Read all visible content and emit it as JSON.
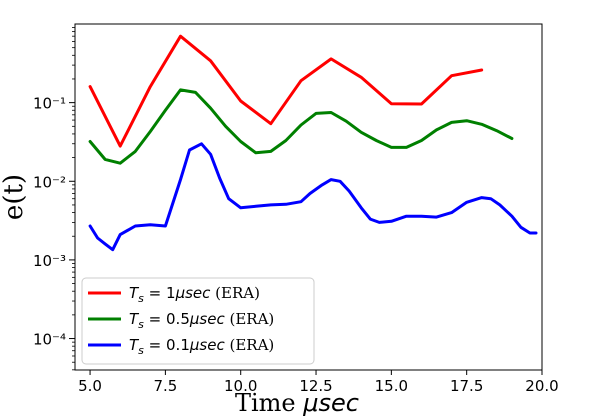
{
  "chart_data": {
    "type": "line",
    "title": "",
    "xlabel": "Time μsec",
    "ylabel": "e(t)",
    "xlim": [
      4.5,
      20.0
    ],
    "ylim_log10": [
      -4.4,
      0.0
    ],
    "yscale": "log",
    "grid": false,
    "legend_placement": "lower-left",
    "x_ticks": [
      5.0,
      7.5,
      10.0,
      12.5,
      15.0,
      17.5,
      20.0
    ],
    "x_tick_labels": [
      "5.0",
      "7.5",
      "10.0",
      "12.5",
      "15.0",
      "17.5",
      "20.0"
    ],
    "y_ticks_log10": [
      -1,
      -2,
      -3,
      -4
    ],
    "y_tick_labels": [
      "10⁻¹",
      "10⁻²",
      "10⁻³",
      "10⁻⁴"
    ],
    "series": [
      {
        "name": "Ts = 1μsec (ERA)",
        "color": "#ff0000",
        "x": [
          5,
          6,
          7,
          8,
          9,
          10,
          11,
          12,
          13,
          14,
          15,
          16,
          17,
          18
        ],
        "y": [
          0.16,
          0.028,
          0.16,
          0.7,
          0.34,
          0.105,
          0.054,
          0.19,
          0.36,
          0.21,
          0.097,
          0.096,
          0.22,
          0.26
        ]
      },
      {
        "name": "Ts = 0.5μsec (ERA)",
        "color": "#008000",
        "x": [
          5,
          5.5,
          6,
          6.5,
          7,
          7.5,
          8,
          8.5,
          9,
          9.5,
          10,
          10.5,
          11,
          11.5,
          12,
          12.5,
          13,
          13.5,
          14,
          14.5,
          15,
          15.5,
          16,
          16.5,
          17,
          17.5,
          18,
          18.5,
          19
        ],
        "y": [
          0.032,
          0.019,
          0.017,
          0.024,
          0.043,
          0.08,
          0.145,
          0.135,
          0.085,
          0.05,
          0.032,
          0.023,
          0.024,
          0.033,
          0.052,
          0.073,
          0.075,
          0.058,
          0.042,
          0.033,
          0.027,
          0.027,
          0.033,
          0.045,
          0.056,
          0.059,
          0.053,
          0.044,
          0.035
        ]
      },
      {
        "name": "Ts = 0.1μsec (ERA)",
        "color": "#0000ff",
        "x": [
          5,
          5.25,
          5.5,
          5.75,
          6,
          6.5,
          7,
          7.5,
          8,
          8.3,
          8.7,
          9,
          9.3,
          9.6,
          10,
          10.5,
          11,
          11.5,
          12,
          12.3,
          12.7,
          13,
          13.3,
          13.6,
          14,
          14.3,
          14.6,
          15,
          15.5,
          16,
          16.5,
          17,
          17.5,
          18,
          18.3,
          18.6,
          19,
          19.3,
          19.6,
          19.8
        ],
        "y": [
          0.0027,
          0.0019,
          0.0016,
          0.00135,
          0.0021,
          0.0027,
          0.0028,
          0.0027,
          0.0105,
          0.025,
          0.03,
          0.022,
          0.011,
          0.006,
          0.0046,
          0.0048,
          0.005,
          0.0051,
          0.0055,
          0.007,
          0.009,
          0.0105,
          0.01,
          0.0075,
          0.0046,
          0.0033,
          0.003,
          0.0031,
          0.0036,
          0.0036,
          0.0035,
          0.004,
          0.0054,
          0.0062,
          0.006,
          0.005,
          0.0036,
          0.0026,
          0.0022,
          0.0022
        ]
      }
    ],
    "legend": [
      {
        "prefix": "T",
        "sub": "s",
        "value": " = 1",
        "unit": "μsec",
        "suffix": " (ERA)"
      },
      {
        "prefix": "T",
        "sub": "s",
        "value": " = 0.5",
        "unit": "μsec",
        "suffix": " (ERA)"
      },
      {
        "prefix": "T",
        "sub": "s",
        "value": " = 0.1",
        "unit": "μsec",
        "suffix": " (ERA)"
      }
    ]
  }
}
